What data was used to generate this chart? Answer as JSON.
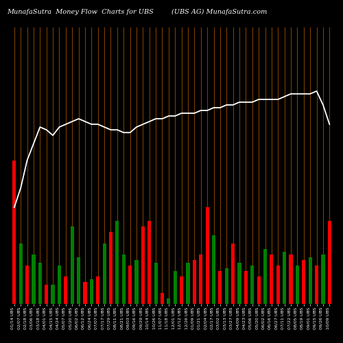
{
  "title_left": "MunafaSutra  Money Flow  Charts for UBS",
  "title_right": "(UBS AG) MunafaSutra.com",
  "background_color": "#000000",
  "grid_line_color": "#8B4500",
  "line_color": "#ffffff",
  "n_bars": 50,
  "bar_colors": [
    "red",
    "green",
    "red",
    "green",
    "green",
    "red",
    "green",
    "green",
    "red",
    "green",
    "green",
    "red",
    "green",
    "red",
    "green",
    "red",
    "green",
    "green",
    "red",
    "green",
    "red",
    "red",
    "green",
    "red",
    "green",
    "green",
    "red",
    "green",
    "red",
    "red",
    "red",
    "green",
    "red",
    "green",
    "red",
    "green",
    "red",
    "green",
    "red",
    "green",
    "red",
    "red",
    "green",
    "red",
    "green",
    "red",
    "green",
    "red",
    "green",
    "red"
  ],
  "bar_heights": [
    0.52,
    0.22,
    0.14,
    0.18,
    0.15,
    0.07,
    0.07,
    0.14,
    0.1,
    0.28,
    0.17,
    0.08,
    0.09,
    0.1,
    0.22,
    0.26,
    0.3,
    0.18,
    0.14,
    0.16,
    0.28,
    0.3,
    0.15,
    0.04,
    0.02,
    0.12,
    0.1,
    0.15,
    0.16,
    0.18,
    0.35,
    0.25,
    0.12,
    0.13,
    0.22,
    0.15,
    0.12,
    0.14,
    0.1,
    0.2,
    0.18,
    0.14,
    0.19,
    0.18,
    0.14,
    0.16,
    0.17,
    0.14,
    0.18,
    0.3
  ],
  "line_values": [
    0.35,
    0.42,
    0.52,
    0.58,
    0.64,
    0.63,
    0.61,
    0.64,
    0.65,
    0.66,
    0.67,
    0.66,
    0.65,
    0.65,
    0.64,
    0.63,
    0.63,
    0.62,
    0.62,
    0.64,
    0.65,
    0.66,
    0.67,
    0.67,
    0.68,
    0.68,
    0.69,
    0.69,
    0.69,
    0.7,
    0.7,
    0.71,
    0.71,
    0.72,
    0.72,
    0.73,
    0.73,
    0.73,
    0.74,
    0.74,
    0.74,
    0.74,
    0.75,
    0.76,
    0.76,
    0.76,
    0.76,
    0.77,
    0.72,
    0.65
  ],
  "xlabels": [
    "01/14 UBS",
    "02/07 UBS",
    "02/18 UBS",
    "03/06 UBS",
    "03/18 UBS",
    "04/01 UBS",
    "04/15 UBS",
    "04/24 UBS",
    "05/07 UBS",
    "05/20 UBS",
    "06/02 UBS",
    "06/12 UBS",
    "06/24 UBS",
    "07/07 UBS",
    "07/17 UBS",
    "07/29 UBS",
    "08/11 UBS",
    "08/21 UBS",
    "09/03 UBS",
    "09/16 UBS",
    "09/29 UBS",
    "10/14 UBS",
    "10/26 UBS",
    "11/07 UBS",
    "11/18 UBS",
    "12/01 UBS",
    "12/12 UBS",
    "12/26 UBS",
    "01/09 UBS",
    "01/21 UBS",
    "02/04 UBS",
    "02/17 UBS",
    "03/02 UBS",
    "03/13 UBS",
    "03/27 UBS",
    "04/09 UBS",
    "04/23 UBS",
    "05/06 UBS",
    "05/20 UBS",
    "06/02 UBS",
    "06/16 UBS",
    "06/27 UBS",
    "07/11 UBS",
    "07/22 UBS",
    "08/05 UBS",
    "08/19 UBS",
    "09/01 UBS",
    "09/15 UBS",
    "09/26 UBS",
    "10/09 UBS"
  ],
  "title_fontsize": 7,
  "tick_fontsize": 4.5,
  "ylim": [
    0,
    1.0
  ],
  "bar_width": 0.55
}
